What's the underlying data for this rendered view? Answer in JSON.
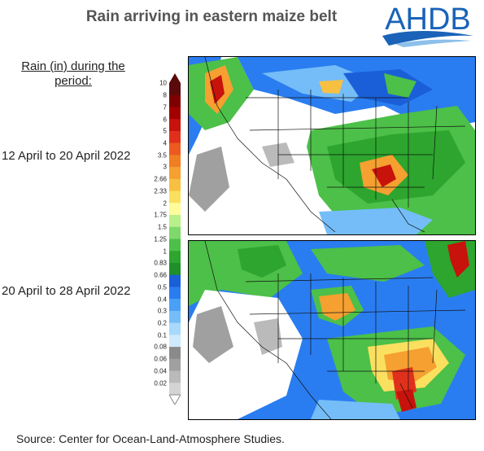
{
  "title": "Rain arriving in eastern maize belt",
  "logo": {
    "text": "AHDB",
    "color": "#1a63b8"
  },
  "legend": {
    "title": "Rain (in) during the period:",
    "ticks": [
      "10",
      "8",
      "7",
      "6",
      "5",
      "4",
      "3.5",
      "3",
      "2.66",
      "2.33",
      "2",
      "1.75",
      "1.5",
      "1.25",
      "1",
      "0.83",
      "0.66",
      "0.5",
      "0.4",
      "0.3",
      "0.2",
      "0.1",
      "0.08",
      "0.06",
      "0.04",
      "0.02"
    ],
    "colors": [
      "#5a0a0a",
      "#7f0000",
      "#a30000",
      "#c8120c",
      "#e0301c",
      "#ec5a20",
      "#f07e22",
      "#f5a030",
      "#f8c040",
      "#fbe060",
      "#fffc9a",
      "#b8f08a",
      "#7ed86a",
      "#4cc048",
      "#2da52e",
      "#1f8f2a",
      "#1a5fd8",
      "#2a7df0",
      "#4aa0f8",
      "#74bdf8",
      "#a8d8fb",
      "#cfeafd",
      "#8a8a8a",
      "#a0a0a0",
      "#bababa",
      "#d4d4d4"
    ]
  },
  "maps": [
    {
      "period": "12 April to 20 April 2022"
    },
    {
      "period": "20 April to 28 April 2022"
    }
  ],
  "source": "Source: Center for Ocean-Land-Atmosphere Studies."
}
